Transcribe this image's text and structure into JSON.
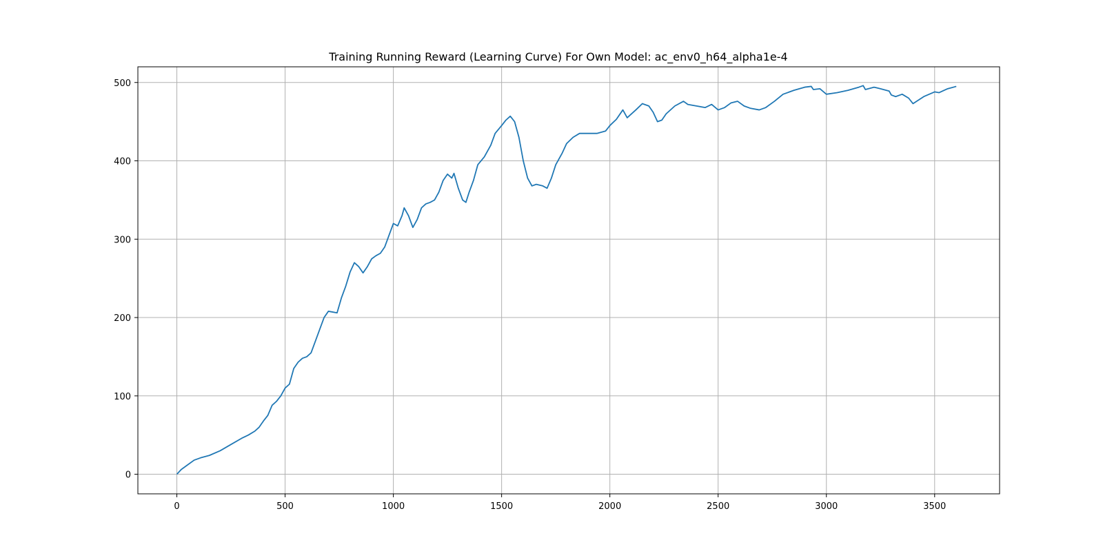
{
  "chart_data": {
    "type": "line",
    "title": "Training Running Reward (Learning Curve) For Own Model: ac_env0_h64_alpha1e-4",
    "xlabel": "",
    "ylabel": "",
    "xlim": [
      -180,
      3800
    ],
    "ylim": [
      -25,
      520
    ],
    "xticks": [
      0,
      500,
      1000,
      1500,
      2000,
      2500,
      3000,
      3500
    ],
    "yticks": [
      0,
      100,
      200,
      300,
      400,
      500
    ],
    "grid": true,
    "line_color": "#1f77b4",
    "grid_color": "#b0b0b0",
    "series": [
      {
        "points": [
          [
            0,
            0
          ],
          [
            20,
            6
          ],
          [
            50,
            12
          ],
          [
            80,
            18
          ],
          [
            110,
            21
          ],
          [
            150,
            24
          ],
          [
            200,
            30
          ],
          [
            250,
            38
          ],
          [
            300,
            46
          ],
          [
            330,
            50
          ],
          [
            360,
            55
          ],
          [
            380,
            60
          ],
          [
            400,
            68
          ],
          [
            420,
            75
          ],
          [
            440,
            88
          ],
          [
            460,
            93
          ],
          [
            480,
            100
          ],
          [
            500,
            110
          ],
          [
            520,
            115
          ],
          [
            540,
            135
          ],
          [
            560,
            143
          ],
          [
            580,
            148
          ],
          [
            600,
            150
          ],
          [
            620,
            155
          ],
          [
            640,
            170
          ],
          [
            660,
            185
          ],
          [
            680,
            200
          ],
          [
            700,
            208
          ],
          [
            720,
            207
          ],
          [
            740,
            206
          ],
          [
            760,
            225
          ],
          [
            780,
            240
          ],
          [
            800,
            258
          ],
          [
            820,
            270
          ],
          [
            840,
            265
          ],
          [
            860,
            257
          ],
          [
            880,
            265
          ],
          [
            900,
            275
          ],
          [
            920,
            279
          ],
          [
            940,
            282
          ],
          [
            960,
            290
          ],
          [
            980,
            305
          ],
          [
            1000,
            320
          ],
          [
            1020,
            317
          ],
          [
            1040,
            330
          ],
          [
            1050,
            340
          ],
          [
            1070,
            330
          ],
          [
            1090,
            315
          ],
          [
            1110,
            325
          ],
          [
            1130,
            340
          ],
          [
            1150,
            345
          ],
          [
            1170,
            347
          ],
          [
            1190,
            350
          ],
          [
            1210,
            360
          ],
          [
            1230,
            375
          ],
          [
            1250,
            383
          ],
          [
            1270,
            378
          ],
          [
            1280,
            384
          ],
          [
            1300,
            365
          ],
          [
            1320,
            350
          ],
          [
            1335,
            347
          ],
          [
            1350,
            360
          ],
          [
            1370,
            375
          ],
          [
            1390,
            395
          ],
          [
            1420,
            405
          ],
          [
            1450,
            420
          ],
          [
            1470,
            435
          ],
          [
            1500,
            445
          ],
          [
            1520,
            452
          ],
          [
            1540,
            457
          ],
          [
            1560,
            450
          ],
          [
            1580,
            430
          ],
          [
            1600,
            400
          ],
          [
            1620,
            378
          ],
          [
            1640,
            368
          ],
          [
            1660,
            370
          ],
          [
            1690,
            368
          ],
          [
            1710,
            365
          ],
          [
            1730,
            378
          ],
          [
            1750,
            395
          ],
          [
            1780,
            410
          ],
          [
            1800,
            422
          ],
          [
            1830,
            430
          ],
          [
            1860,
            435
          ],
          [
            1900,
            435
          ],
          [
            1940,
            435
          ],
          [
            1980,
            438
          ],
          [
            2000,
            445
          ],
          [
            2030,
            453
          ],
          [
            2060,
            465
          ],
          [
            2080,
            455
          ],
          [
            2120,
            465
          ],
          [
            2150,
            473
          ],
          [
            2180,
            470
          ],
          [
            2200,
            462
          ],
          [
            2220,
            450
          ],
          [
            2240,
            452
          ],
          [
            2260,
            460
          ],
          [
            2300,
            470
          ],
          [
            2340,
            476
          ],
          [
            2360,
            472
          ],
          [
            2400,
            470
          ],
          [
            2440,
            468
          ],
          [
            2470,
            472
          ],
          [
            2500,
            465
          ],
          [
            2530,
            468
          ],
          [
            2560,
            474
          ],
          [
            2590,
            476
          ],
          [
            2620,
            470
          ],
          [
            2650,
            467
          ],
          [
            2690,
            465
          ],
          [
            2720,
            468
          ],
          [
            2760,
            476
          ],
          [
            2800,
            485
          ],
          [
            2850,
            490
          ],
          [
            2900,
            494
          ],
          [
            2930,
            495
          ],
          [
            2940,
            491
          ],
          [
            2970,
            492
          ],
          [
            3000,
            485
          ],
          [
            3050,
            487
          ],
          [
            3100,
            490
          ],
          [
            3150,
            494
          ],
          [
            3170,
            496
          ],
          [
            3180,
            491
          ],
          [
            3220,
            494
          ],
          [
            3250,
            492
          ],
          [
            3290,
            489
          ],
          [
            3300,
            484
          ],
          [
            3320,
            482
          ],
          [
            3350,
            485
          ],
          [
            3380,
            480
          ],
          [
            3400,
            473
          ],
          [
            3450,
            482
          ],
          [
            3500,
            488
          ],
          [
            3520,
            487
          ],
          [
            3560,
            492
          ],
          [
            3600,
            495
          ]
        ]
      }
    ]
  }
}
